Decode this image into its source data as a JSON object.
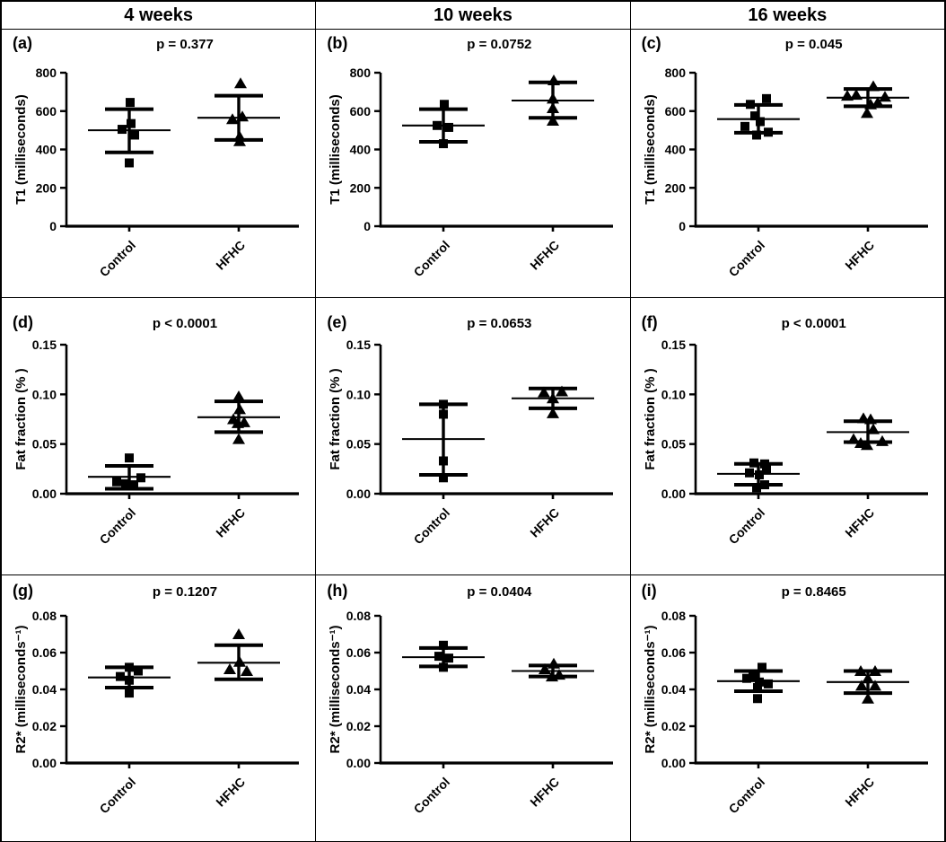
{
  "figure_title": "",
  "headers": [
    {
      "label": "4 weeks"
    },
    {
      "label": "10 weeks"
    },
    {
      "label": "16 weeks"
    }
  ],
  "styles": {
    "ink": "#000000",
    "background": "#ffffff"
  },
  "categories": [
    "Control",
    "HFHC"
  ],
  "chart_data": [
    {
      "type": "scatter",
      "panel_label": "(a)",
      "p_label": "p = 0.377",
      "column": "4 weeks",
      "ylabel": "T1 (milliseconds)",
      "ylim": [
        0,
        800
      ],
      "ytick_values": [
        0,
        200,
        400,
        600,
        800
      ],
      "ytick_labels": [
        "0",
        "200",
        "400",
        "600",
        "800"
      ],
      "categories": [
        "Control",
        "HFHC"
      ],
      "series": [
        {
          "name": "Control",
          "marker": "square",
          "values": [
            645,
            535,
            505,
            475,
            330
          ],
          "jitter": [
            1,
            2,
            -8,
            6,
            0
          ],
          "mean": 500,
          "err_range": [
            385,
            610
          ]
        },
        {
          "name": "HFHC",
          "marker": "triangle",
          "values": [
            745,
            572,
            558,
            467,
            443
          ],
          "jitter": [
            2,
            4,
            -7,
            1,
            1
          ],
          "mean": 565,
          "err_range": [
            450,
            680
          ]
        }
      ]
    },
    {
      "type": "scatter",
      "panel_label": "(b)",
      "p_label": "p = 0.0752",
      "column": "10 weeks",
      "ylabel": "T1 (milliseconds)",
      "ylim": [
        0,
        800
      ],
      "ytick_values": [
        0,
        200,
        400,
        600,
        800
      ],
      "ytick_labels": [
        "0",
        "200",
        "400",
        "600",
        "800"
      ],
      "categories": [
        "Control",
        "HFHC"
      ],
      "series": [
        {
          "name": "Control",
          "marker": "square",
          "values": [
            635,
            525,
            515,
            430
          ],
          "jitter": [
            1,
            -7,
            6,
            0
          ],
          "mean": 525,
          "err_range": [
            440,
            610
          ]
        },
        {
          "name": "HFHC",
          "marker": "triangle",
          "values": [
            760,
            665,
            615,
            550
          ],
          "jitter": [
            1,
            0,
            0,
            0
          ],
          "mean": 655,
          "err_range": [
            565,
            750
          ]
        }
      ]
    },
    {
      "type": "scatter",
      "panel_label": "(c)",
      "p_label": "p = 0.045",
      "column": "16 weeks",
      "ylabel": "T1 (milliseconds)",
      "ylim": [
        0,
        800
      ],
      "ytick_values": [
        0,
        200,
        400,
        600,
        800
      ],
      "ytick_labels": [
        "0",
        "200",
        "400",
        "600",
        "800"
      ],
      "categories": [
        "Control",
        "HFHC"
      ],
      "series": [
        {
          "name": "Control",
          "marker": "square",
          "values": [
            665,
            635,
            575,
            545,
            520,
            490,
            475
          ],
          "jitter": [
            9,
            -9,
            -4,
            2,
            -15,
            11,
            -2
          ],
          "mean": 558,
          "err_range": [
            487,
            632
          ]
        },
        {
          "name": "HFHC",
          "marker": "triangle",
          "values": [
            730,
            685,
            680,
            675,
            645,
            635,
            590
          ],
          "jitter": [
            6,
            -13,
            -23,
            19,
            11,
            3,
            -1
          ],
          "mean": 670,
          "err_range": [
            625,
            715
          ]
        }
      ]
    },
    {
      "type": "scatter",
      "panel_label": "(d)",
      "p_label": "p < 0.0001",
      "column": "4 weeks",
      "ylabel": "Fat fraction (% )",
      "ylim": [
        0,
        0.15
      ],
      "ytick_values": [
        0,
        0.05,
        0.1,
        0.15
      ],
      "ytick_labels": [
        "0.00",
        "0.05",
        "0.10",
        "0.15"
      ],
      "categories": [
        "Control",
        "HFHC"
      ],
      "series": [
        {
          "name": "Control",
          "marker": "square",
          "values": [
            0.036,
            0.016,
            0.012,
            0.01,
            0.009
          ],
          "jitter": [
            0,
            13,
            -14,
            -4,
            5
          ],
          "mean": 0.017,
          "err_range": [
            0.005,
            0.028
          ]
        },
        {
          "name": "HFHC",
          "marker": "triangle",
          "values": [
            0.098,
            0.085,
            0.075,
            0.072,
            0.071,
            0.055
          ],
          "jitter": [
            0,
            1,
            -6,
            6,
            -1,
            0
          ],
          "mean": 0.077,
          "err_range": [
            0.062,
            0.093
          ]
        }
      ]
    },
    {
      "type": "scatter",
      "panel_label": "(e)",
      "p_label": "p = 0.0653",
      "column": "10 weeks",
      "ylabel": "Fat fraction (% )",
      "ylim": [
        0,
        0.15
      ],
      "ytick_values": [
        0,
        0.05,
        0.1,
        0.15
      ],
      "ytick_labels": [
        "0.00",
        "0.05",
        "0.10",
        "0.15"
      ],
      "categories": [
        "Control",
        "HFHC"
      ],
      "series": [
        {
          "name": "Control",
          "marker": "square",
          "values": [
            0.09,
            0.08,
            0.033,
            0.016
          ],
          "jitter": [
            0,
            0,
            0,
            0
          ],
          "mean": 0.055,
          "err_range": [
            0.019,
            0.09
          ]
        },
        {
          "name": "HFHC",
          "marker": "triangle",
          "values": [
            0.102,
            0.103,
            0.096,
            0.081
          ],
          "jitter": [
            -10,
            10,
            0,
            0
          ],
          "mean": 0.096,
          "err_range": [
            0.086,
            0.106
          ]
        }
      ]
    },
    {
      "type": "scatter",
      "panel_label": "(f)",
      "p_label": "p < 0.0001",
      "column": "16 weeks",
      "ylabel": "Fat fraction (% )",
      "ylim": [
        0,
        0.15
      ],
      "ytick_values": [
        0,
        0.05,
        0.1,
        0.15
      ],
      "ytick_labels": [
        "0.00",
        "0.05",
        "0.10",
        "0.15"
      ],
      "categories": [
        "Control",
        "HFHC"
      ],
      "series": [
        {
          "name": "Control",
          "marker": "square",
          "values": [
            0.031,
            0.03,
            0.024,
            0.021,
            0.019,
            0.009,
            0.006
          ],
          "jitter": [
            -5,
            7,
            9,
            -10,
            1,
            7,
            -2
          ],
          "mean": 0.02,
          "err_range": [
            0.009,
            0.03
          ]
        },
        {
          "name": "HFHC",
          "marker": "triangle",
          "values": [
            0.076,
            0.075,
            0.065,
            0.055,
            0.053,
            0.051,
            0.049
          ],
          "jitter": [
            -5,
            3,
            6,
            -16,
            16,
            -8,
            -1
          ],
          "mean": 0.062,
          "err_range": [
            0.052,
            0.073
          ]
        }
      ]
    },
    {
      "type": "scatter",
      "panel_label": "(g)",
      "p_label": "p = 0.1207",
      "column": "4 weeks",
      "ylabel": "R2* (milliseconds⁻¹)",
      "ylim": [
        0,
        0.08
      ],
      "ytick_values": [
        0,
        0.02,
        0.04,
        0.06,
        0.08
      ],
      "ytick_labels": [
        "0.00",
        "0.02",
        "0.04",
        "0.06",
        "0.08"
      ],
      "categories": [
        "Control",
        "HFHC"
      ],
      "series": [
        {
          "name": "Control",
          "marker": "square",
          "values": [
            0.052,
            0.05,
            0.047,
            0.045,
            0.038
          ],
          "jitter": [
            0,
            10,
            -10,
            0,
            0
          ],
          "mean": 0.0465,
          "err_range": [
            0.041,
            0.052
          ]
        },
        {
          "name": "HFHC",
          "marker": "triangle",
          "values": [
            0.07,
            0.055,
            0.051,
            0.05
          ],
          "jitter": [
            0,
            1,
            -10,
            9
          ],
          "mean": 0.0545,
          "err_range": [
            0.0455,
            0.064
          ]
        }
      ]
    },
    {
      "type": "scatter",
      "panel_label": "(h)",
      "p_label": "p = 0.0404",
      "column": "10 weeks",
      "ylabel": "R2* (milliseconds⁻¹)",
      "ylim": [
        0,
        0.08
      ],
      "ytick_values": [
        0,
        0.02,
        0.04,
        0.06,
        0.08
      ],
      "ytick_labels": [
        "0.00",
        "0.02",
        "0.04",
        "0.06",
        "0.08"
      ],
      "categories": [
        "Control",
        "HFHC"
      ],
      "series": [
        {
          "name": "Control",
          "marker": "square",
          "values": [
            0.064,
            0.058,
            0.057,
            0.052
          ],
          "jitter": [
            0,
            -5,
            6,
            0
          ],
          "mean": 0.0575,
          "err_range": [
            0.0525,
            0.0625
          ]
        },
        {
          "name": "HFHC",
          "marker": "triangle",
          "values": [
            0.054,
            0.051,
            0.048,
            0.047
          ],
          "jitter": [
            1,
            -9,
            7,
            -1
          ],
          "mean": 0.05,
          "err_range": [
            0.047,
            0.053
          ]
        }
      ]
    },
    {
      "type": "scatter",
      "panel_label": "(i)",
      "p_label": "p = 0.8465",
      "column": "16 weeks",
      "ylabel": "R2* (milliseconds⁻¹)",
      "ylim": [
        0,
        0.08
      ],
      "ytick_values": [
        0,
        0.02,
        0.04,
        0.06,
        0.08
      ],
      "ytick_labels": [
        "0.00",
        "0.02",
        "0.04",
        "0.06",
        "0.08"
      ],
      "categories": [
        "Control",
        "HFHC"
      ],
      "series": [
        {
          "name": "Control",
          "marker": "square",
          "values": [
            0.052,
            0.047,
            0.046,
            0.044,
            0.043,
            0.041,
            0.035
          ],
          "jitter": [
            4,
            -6,
            -13,
            1,
            11,
            -1,
            -1
          ],
          "mean": 0.0445,
          "err_range": [
            0.039,
            0.05
          ]
        },
        {
          "name": "HFHC",
          "marker": "triangle",
          "values": [
            0.05,
            0.05,
            0.046,
            0.042,
            0.042,
            0.035
          ],
          "jitter": [
            -8,
            8,
            0,
            -7,
            8,
            0
          ],
          "mean": 0.044,
          "err_range": [
            0.038,
            0.05
          ]
        }
      ]
    }
  ]
}
